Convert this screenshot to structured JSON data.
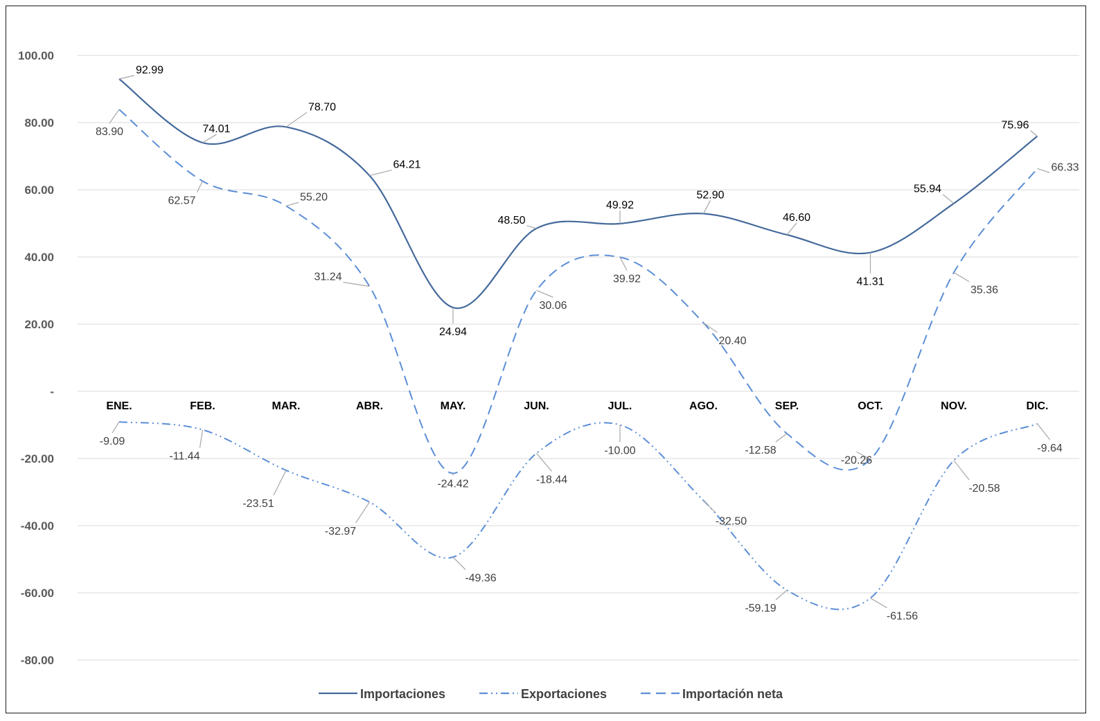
{
  "chart_data": {
    "type": "line",
    "title": "",
    "xlabel": "",
    "ylabel": "",
    "categories": [
      "ENE.",
      "FEB.",
      "MAR.",
      "ABR.",
      "MAY.",
      "JUN.",
      "JUL.",
      "AGO.",
      "SEP.",
      "OCT.",
      "NOV.",
      "DIC."
    ],
    "ylim": [
      -80,
      100
    ],
    "yticks": [
      100,
      80,
      60,
      40,
      20,
      0,
      -20,
      -40,
      -60,
      -80
    ],
    "ytick_labels": [
      "100.00",
      "80.00",
      "60.00",
      "40.00",
      "20.00",
      "-",
      "-20.00",
      "-40.00",
      "-60.00",
      "-80.00"
    ],
    "grid": true,
    "legend_position": "bottom",
    "series": [
      {
        "name": "Importaciones",
        "style": "solid",
        "color": "#44699B",
        "values": [
          92.99,
          74.01,
          78.7,
          64.21,
          24.94,
          48.5,
          49.92,
          52.9,
          46.6,
          41.31,
          55.94,
          75.96
        ],
        "labels": [
          "92.99",
          "74.01",
          "78.70",
          "64.21",
          "24.94",
          "48.50",
          "49.92",
          "52.90",
          "46.60",
          "41.31",
          "55.94",
          "75.96"
        ]
      },
      {
        "name": "Exportaciones",
        "style": "dash-dot-dot",
        "color": "#5B8ED6",
        "values": [
          -9.09,
          -11.44,
          -23.51,
          -32.97,
          -49.36,
          -18.44,
          -10.0,
          -32.5,
          -59.19,
          -61.56,
          -20.58,
          -9.64
        ],
        "labels": [
          "-9.09",
          "-11.44",
          "-23.51",
          "-32.97",
          "-49.36",
          "-18.44",
          "-10.00",
          "-32.50",
          "-59.19",
          "-61.56",
          "-20.58",
          "-9.64"
        ]
      },
      {
        "name": "Importación neta",
        "style": "dashed",
        "color": "#5B8ED6",
        "values": [
          83.9,
          62.57,
          55.2,
          31.24,
          -24.42,
          30.06,
          39.92,
          20.4,
          -12.58,
          -20.26,
          35.36,
          66.33
        ],
        "labels": [
          "83.90",
          "62.57",
          "55.20",
          "31.24",
          "-24.42",
          "30.06",
          "39.92",
          "20.40",
          "-12.58",
          "-20.26",
          "35.36",
          "66.33"
        ]
      }
    ]
  },
  "legend": {
    "items": [
      {
        "label": "Importaciones",
        "style": "solid"
      },
      {
        "label": "Exportaciones",
        "style": "dash-dot-dot"
      },
      {
        "label": "Importación neta",
        "style": "dashed"
      }
    ]
  },
  "colors": {
    "importaciones": "#44699B",
    "exportaciones": "#5B8ED6",
    "importacion_neta": "#5B8ED6",
    "gridline": "#D9D9D9",
    "leader": "#A6A6A6"
  }
}
